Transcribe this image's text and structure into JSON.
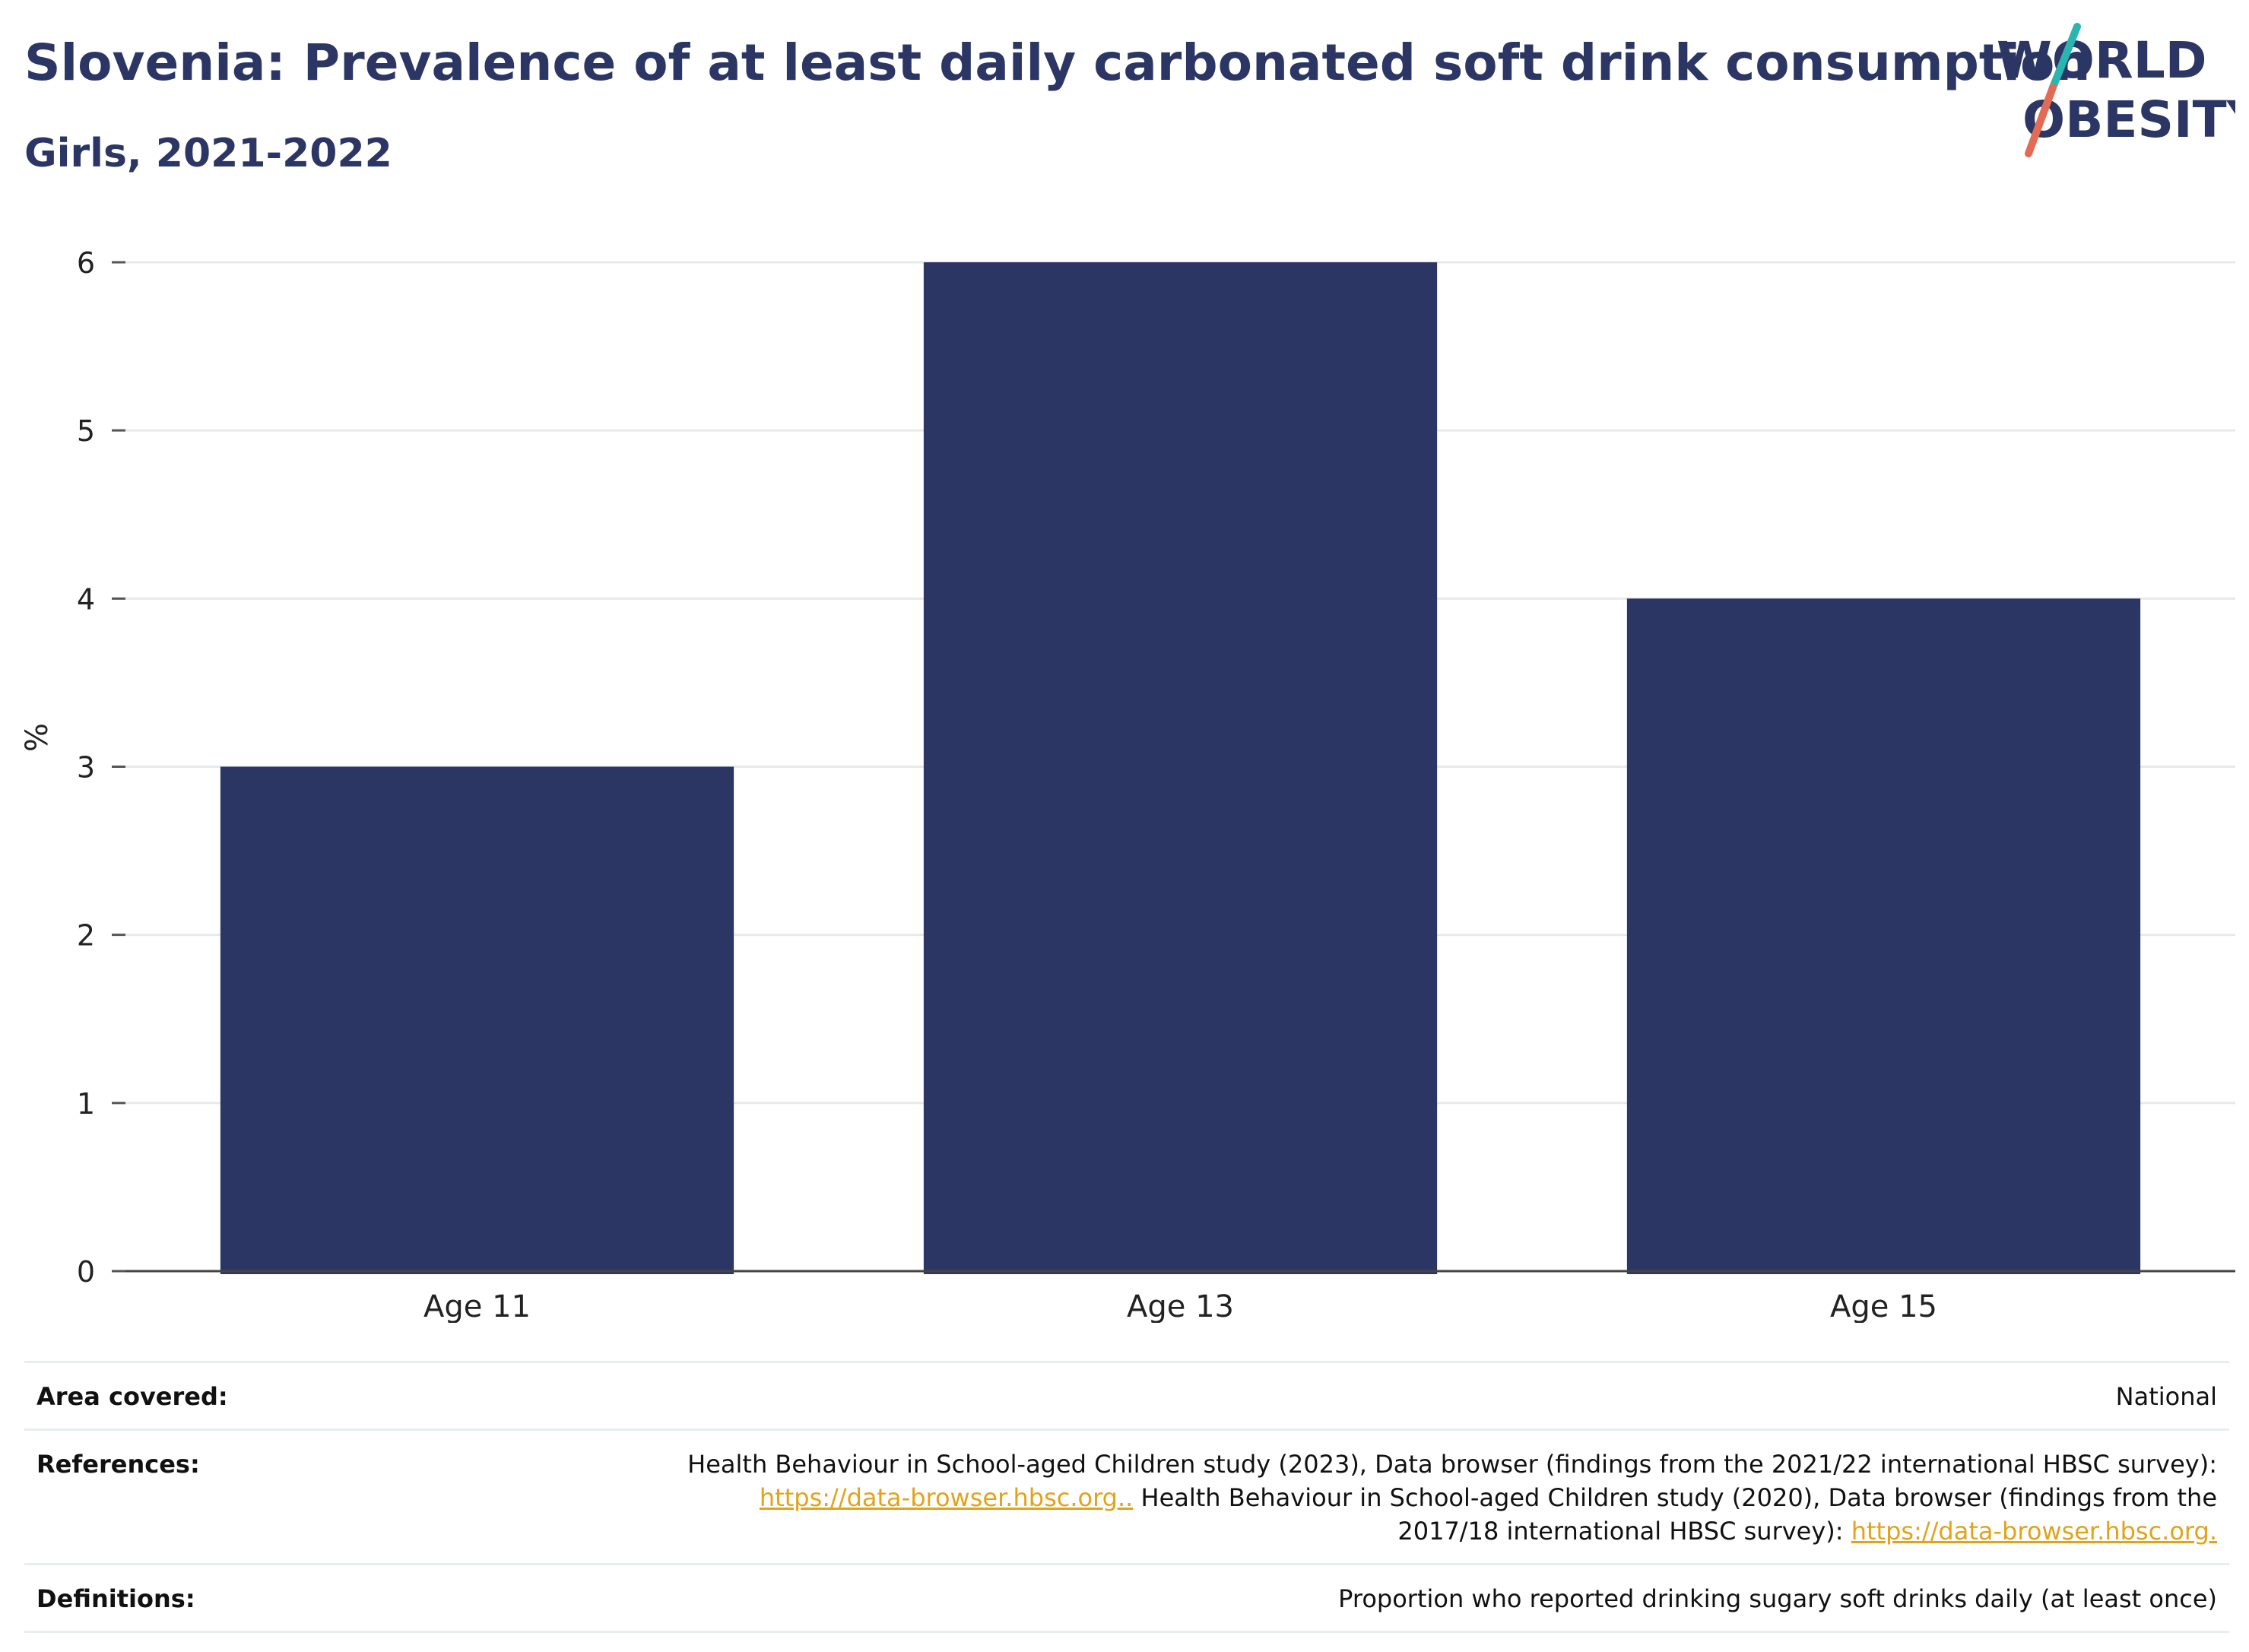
{
  "header": {
    "title": "Slovenia: Prevalence of at least daily carbonated soft drink consumption",
    "subtitle": "Girls, 2021-2022"
  },
  "logo": {
    "line1": "WORLD",
    "line2": "OBESITY",
    "colors": {
      "text": "#2b3664",
      "slash_top": "#2bb5b0",
      "slash_bottom": "#e36b55"
    }
  },
  "chart_data": {
    "type": "bar",
    "categories": [
      "Age 11",
      "Age 13",
      "Age 15"
    ],
    "values": [
      3,
      6,
      4
    ],
    "title": "",
    "xlabel": "",
    "ylabel": "%",
    "ylim": [
      0,
      6
    ],
    "yticks": [
      0,
      1,
      2,
      3,
      4,
      5,
      6
    ],
    "grid": true,
    "bar_color": "#2b3664"
  },
  "footer": {
    "area_label": "Area covered:",
    "area_value": "National",
    "references_label": "References:",
    "references": {
      "part1": "Health Behaviour in School-aged Children study (2023), Data browser (findings from the 2021/22 international HBSC survey):",
      "link1": "https://data-browser.hbsc.org..",
      "part2": " Health Behaviour in School-aged Children study (2020), Data browser (findings from the 2017/18 international HBSC survey): ",
      "link2": "https://data-browser.hbsc.org."
    },
    "definitions_label": "Definitions:",
    "definitions_value": "Proportion who reported drinking sugary soft drinks daily (at least once)"
  }
}
